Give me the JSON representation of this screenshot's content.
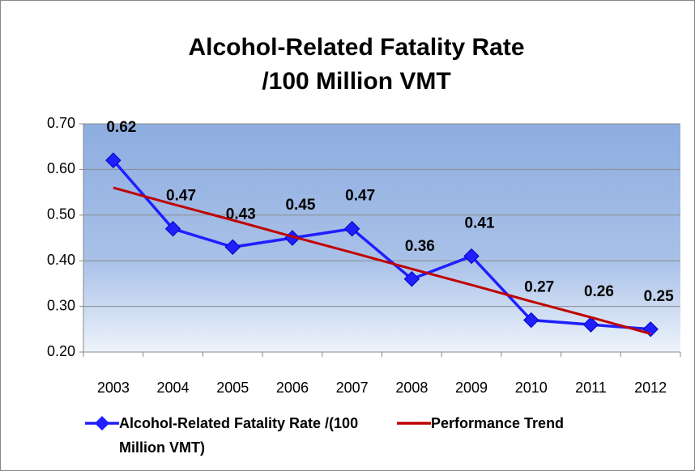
{
  "chart_data": {
    "type": "line",
    "title": "Alcohol-Related Fatality Rate /100 Million VMT",
    "categories": [
      "2003",
      "2004",
      "2005",
      "2006",
      "2007",
      "2008",
      "2009",
      "2010",
      "2011",
      "2012"
    ],
    "series": [
      {
        "name": "Alcohol-Related Fatality Rate /(100 Million VMT)",
        "color": "#1f1fff",
        "values": [
          0.62,
          0.47,
          0.43,
          0.45,
          0.47,
          0.36,
          0.41,
          0.27,
          0.26,
          0.25
        ],
        "marker": "diamond",
        "data_labels": true
      },
      {
        "name": "Performance Trend",
        "color": "#c00000",
        "values": [
          0.56,
          0.524,
          0.489,
          0.453,
          0.418,
          0.382,
          0.347,
          0.311,
          0.276,
          0.24
        ]
      }
    ],
    "ylim": [
      0.2,
      0.7
    ],
    "yticks": [
      {
        "value": 0.2,
        "label": "0.20"
      },
      {
        "value": 0.3,
        "label": "0.30"
      },
      {
        "value": 0.4,
        "label": "0.40"
      },
      {
        "value": 0.5,
        "label": "0.50"
      },
      {
        "value": 0.6,
        "label": "0.60"
      },
      {
        "value": 0.7,
        "label": "0.70"
      }
    ],
    "grid": true,
    "legend": "bottom"
  }
}
